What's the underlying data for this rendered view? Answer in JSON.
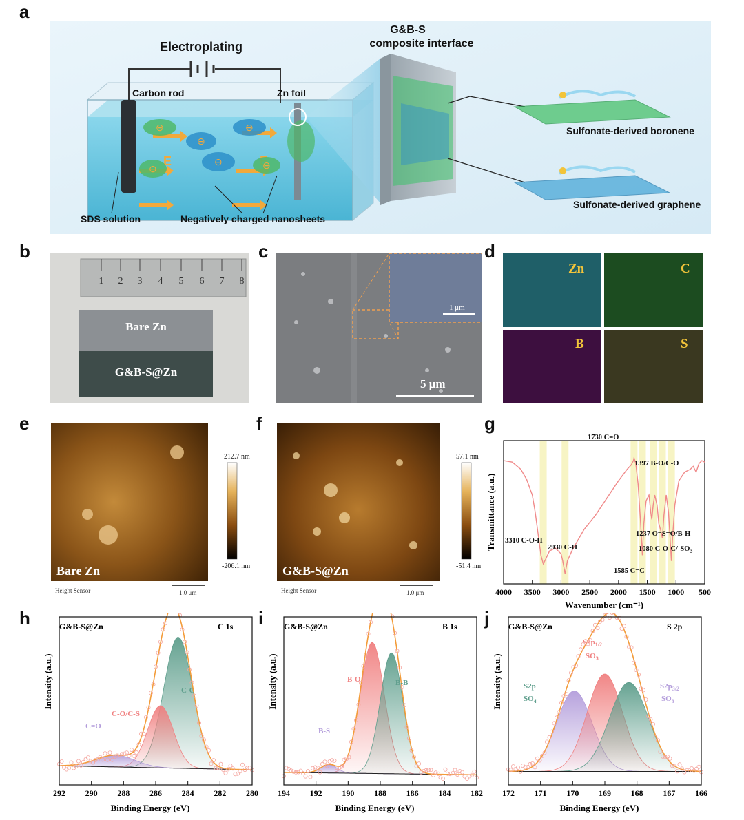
{
  "panel_labels": [
    "a",
    "b",
    "c",
    "d",
    "e",
    "f",
    "g",
    "h",
    "i",
    "j"
  ],
  "panel_a": {
    "electroplating": "Electroplating",
    "carbon_rod": "Carbon rod",
    "zn_foil": "Zn foil",
    "e_field": "E",
    "composite_title_1": "G&B-S",
    "composite_title_2": "composite interface",
    "boronene": "Sulfonate-derived boronene",
    "graphene": "Sulfonate-derived graphene",
    "sds": "SDS solution",
    "nanosheets": "Negatively charged nanosheets",
    "minus": "⊖"
  },
  "panel_b": {
    "ruler_marks": [
      "1",
      "2",
      "3",
      "4",
      "5",
      "6",
      "7",
      "8"
    ],
    "bare_zn": "Bare Zn",
    "coated_zn": "G&B-S@Zn"
  },
  "panel_c": {
    "scale_main": "5 μm",
    "scale_inset": "1 μm"
  },
  "panel_d": {
    "elements": [
      "Zn",
      "C",
      "B",
      "S"
    ]
  },
  "panel_e": {
    "sample": "Bare Zn",
    "sensor": "Height Sensor",
    "scale": "1.0 μm",
    "max": "212.7 nm",
    "min": "-206.1 nm"
  },
  "panel_f": {
    "sample": "G&B-S@Zn",
    "sensor": "Height Sensor",
    "scale": "1.0 μm",
    "max": "57.1 nm",
    "min": "-51.4 nm"
  },
  "panel_g_annotations": {
    "c_o_h": "3310 C-O-H",
    "c_h": "2930 C-H",
    "c_eq_o": "1730 C=O",
    "b_o": "1397 B-O/C-O",
    "o_s_o": "1237 O=S=O/B-H",
    "c_o_c": "1080 C-O-C/-SO",
    "c_o_c_sub": "3",
    "c_eq_c": "1585 C=C"
  },
  "panel_h_labels": {
    "sample": "G&B-S@Zn",
    "region": "C 1s",
    "cc": "C-C",
    "co": "C-O/C-S",
    "ceqo": "C=O"
  },
  "panel_i_labels": {
    "sample": "G&B-S@Zn",
    "region": "B 1s",
    "bo": "B-O",
    "bb": "B-B",
    "bs": "B-S"
  },
  "panel_j_labels": {
    "sample": "G&B-S@Zn",
    "region": "S 2p",
    "p12": "S2p",
    "p12_sub": "1/2",
    "so3": "SO",
    "so3_sub": "3",
    "so4_a": "S2p",
    "so4_b": "SO",
    "so4_sub": "4",
    "p32": "S2p",
    "p32_sub": "3/2"
  },
  "chart_data": [
    {
      "id": "g",
      "type": "line",
      "title": "",
      "xlabel": "Wavenumber (cm⁻¹)",
      "ylabel": "Transmittance (a.u.)",
      "xlim": [
        4000,
        500
      ],
      "xticks": [
        4000,
        3500,
        3000,
        2500,
        2000,
        1500,
        1000,
        500
      ],
      "bands": [
        3310,
        2930,
        1730,
        1585,
        1397,
        1237,
        1080
      ],
      "x": [
        4000,
        3850,
        3700,
        3600,
        3500,
        3450,
        3400,
        3350,
        3310,
        3270,
        3200,
        3100,
        3000,
        2970,
        2930,
        2890,
        2800,
        2600,
        2400,
        2200,
        2000,
        1850,
        1780,
        1740,
        1730,
        1700,
        1660,
        1620,
        1585,
        1560,
        1520,
        1470,
        1440,
        1420,
        1397,
        1370,
        1330,
        1300,
        1270,
        1237,
        1210,
        1170,
        1130,
        1100,
        1080,
        1060,
        1020,
        950,
        850,
        750,
        700,
        650,
        600,
        550,
        500
      ],
      "y": [
        0.86,
        0.85,
        0.8,
        0.73,
        0.62,
        0.5,
        0.35,
        0.2,
        0.14,
        0.17,
        0.23,
        0.25,
        0.21,
        0.16,
        0.07,
        0.16,
        0.24,
        0.38,
        0.48,
        0.6,
        0.72,
        0.8,
        0.83,
        0.86,
        0.88,
        0.84,
        0.7,
        0.45,
        0.2,
        0.42,
        0.58,
        0.62,
        0.5,
        0.45,
        0.55,
        0.62,
        0.55,
        0.42,
        0.38,
        0.32,
        0.48,
        0.62,
        0.5,
        0.3,
        0.16,
        0.32,
        0.55,
        0.72,
        0.78,
        0.8,
        0.82,
        0.78,
        0.84,
        0.86,
        0.85
      ]
    },
    {
      "id": "h",
      "type": "line",
      "title": "C 1s",
      "xlabel": "Binding Energy (eV)",
      "ylabel": "Intensity (a.u.)",
      "xlim": [
        292,
        280
      ],
      "ylim": [
        0,
        1
      ],
      "xticks": [
        292,
        290,
        288,
        286,
        284,
        282,
        280
      ],
      "peaks": [
        {
          "name": "C-C",
          "center": 284.6,
          "height": 0.78,
          "width": 0.9,
          "color": "#5e9e8c"
        },
        {
          "name": "C-O/C-S",
          "center": 285.7,
          "height": 0.37,
          "width": 0.8,
          "color": "#f08080"
        },
        {
          "name": "C=O",
          "center": 288.5,
          "height": 0.07,
          "width": 1.2,
          "color": "#b39ddb"
        }
      ]
    },
    {
      "id": "i",
      "type": "line",
      "title": "B 1s",
      "xlabel": "Binding Energy (eV)",
      "ylabel": "Intensity (a.u.)",
      "xlim": [
        194,
        182
      ],
      "ylim": [
        0,
        1
      ],
      "xticks": [
        194,
        192,
        190,
        188,
        186,
        184,
        182
      ],
      "peaks": [
        {
          "name": "B-O",
          "center": 188.5,
          "height": 0.78,
          "width": 0.75,
          "color": "#f08080"
        },
        {
          "name": "B-B",
          "center": 187.3,
          "height": 0.72,
          "width": 0.7,
          "color": "#5e9e8c"
        },
        {
          "name": "B-S",
          "center": 191.2,
          "height": 0.05,
          "width": 0.5,
          "color": "#b39ddb"
        }
      ]
    },
    {
      "id": "j",
      "type": "line",
      "title": "S 2p",
      "xlabel": "Binding Energy (eV)",
      "ylabel": "Intensity (a.u.)",
      "xlim": [
        172,
        166
      ],
      "ylim": [
        0,
        1
      ],
      "xticks": [
        172,
        171,
        170,
        169,
        168,
        167,
        166
      ],
      "peaks": [
        {
          "name": "S2p SO4",
          "center": 169.95,
          "height": 0.48,
          "width": 0.55,
          "color": "#b39ddb"
        },
        {
          "name": "S2p1/2 SO3",
          "center": 169.0,
          "height": 0.58,
          "width": 0.55,
          "color": "#f08080"
        },
        {
          "name": "S2p3/2 SO3",
          "center": 168.25,
          "height": 0.53,
          "width": 0.6,
          "color": "#5e9e8c"
        }
      ]
    }
  ]
}
